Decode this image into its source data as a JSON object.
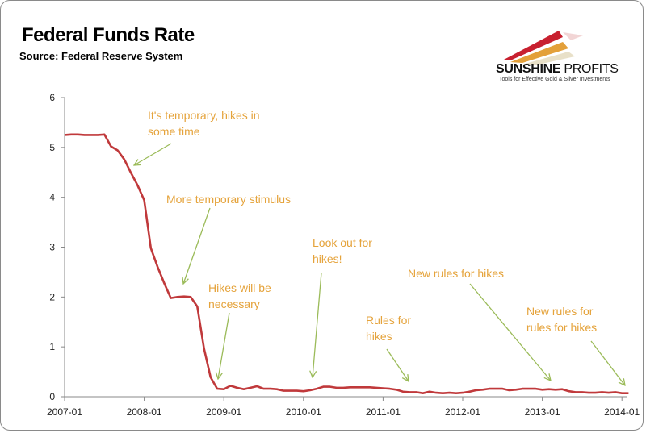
{
  "chart_data": {
    "type": "line",
    "title": "Federal Funds Rate",
    "subtitle": "Source: Federal Reserve System",
    "xlabel": "",
    "ylabel": "",
    "ylim": [
      0,
      6
    ],
    "yticks": [
      "0",
      "1",
      "2",
      "3",
      "4",
      "5",
      "6"
    ],
    "xticks": [
      "2007-01",
      "2008-01",
      "2009-01",
      "2010-01",
      "2011-01",
      "2012-01",
      "2013-01",
      "2014-01"
    ],
    "grid": false,
    "line_color": "#C0393B",
    "annotation_text_color": "#E5A33B",
    "arrow_color": "#9BBB59",
    "series": [
      {
        "name": "Federal Funds Rate",
        "start": "2007-01",
        "frequency": "monthly",
        "values": [
          5.25,
          5.26,
          5.26,
          5.25,
          5.25,
          5.25,
          5.26,
          5.02,
          4.94,
          4.76,
          4.49,
          4.24,
          3.94,
          2.98,
          2.61,
          2.28,
          1.98,
          2.0,
          2.01,
          2.0,
          1.81,
          0.97,
          0.39,
          0.16,
          0.15,
          0.22,
          0.18,
          0.15,
          0.18,
          0.21,
          0.16,
          0.16,
          0.15,
          0.12,
          0.12,
          0.12,
          0.11,
          0.13,
          0.16,
          0.2,
          0.2,
          0.18,
          0.18,
          0.19,
          0.19,
          0.19,
          0.19,
          0.18,
          0.17,
          0.16,
          0.14,
          0.1,
          0.09,
          0.09,
          0.07,
          0.1,
          0.08,
          0.07,
          0.08,
          0.07,
          0.08,
          0.1,
          0.13,
          0.14,
          0.16,
          0.16,
          0.16,
          0.13,
          0.14,
          0.16,
          0.16,
          0.16,
          0.14,
          0.15,
          0.14,
          0.15,
          0.11,
          0.09,
          0.09,
          0.08,
          0.08,
          0.09,
          0.08,
          0.09,
          0.07,
          0.07
        ]
      }
    ],
    "annotations": [
      {
        "lines": [
          "It's temporary, hikes in",
          "some time"
        ]
      },
      {
        "lines": [
          "More temporary stimulus"
        ]
      },
      {
        "lines": [
          "Hikes will be",
          "necessary"
        ]
      },
      {
        "lines": [
          "Look out for",
          "hikes!"
        ]
      },
      {
        "lines": [
          "Rules for",
          "hikes"
        ]
      },
      {
        "lines": [
          "New rules for hikes"
        ]
      },
      {
        "lines": [
          "New rules for",
          "rules for hikes"
        ]
      }
    ]
  },
  "logo": {
    "brand_bold": "SUNSHINE",
    "brand_light": " PROFITS",
    "tagline": "Tools for Effective Gold & Silver Investments"
  }
}
